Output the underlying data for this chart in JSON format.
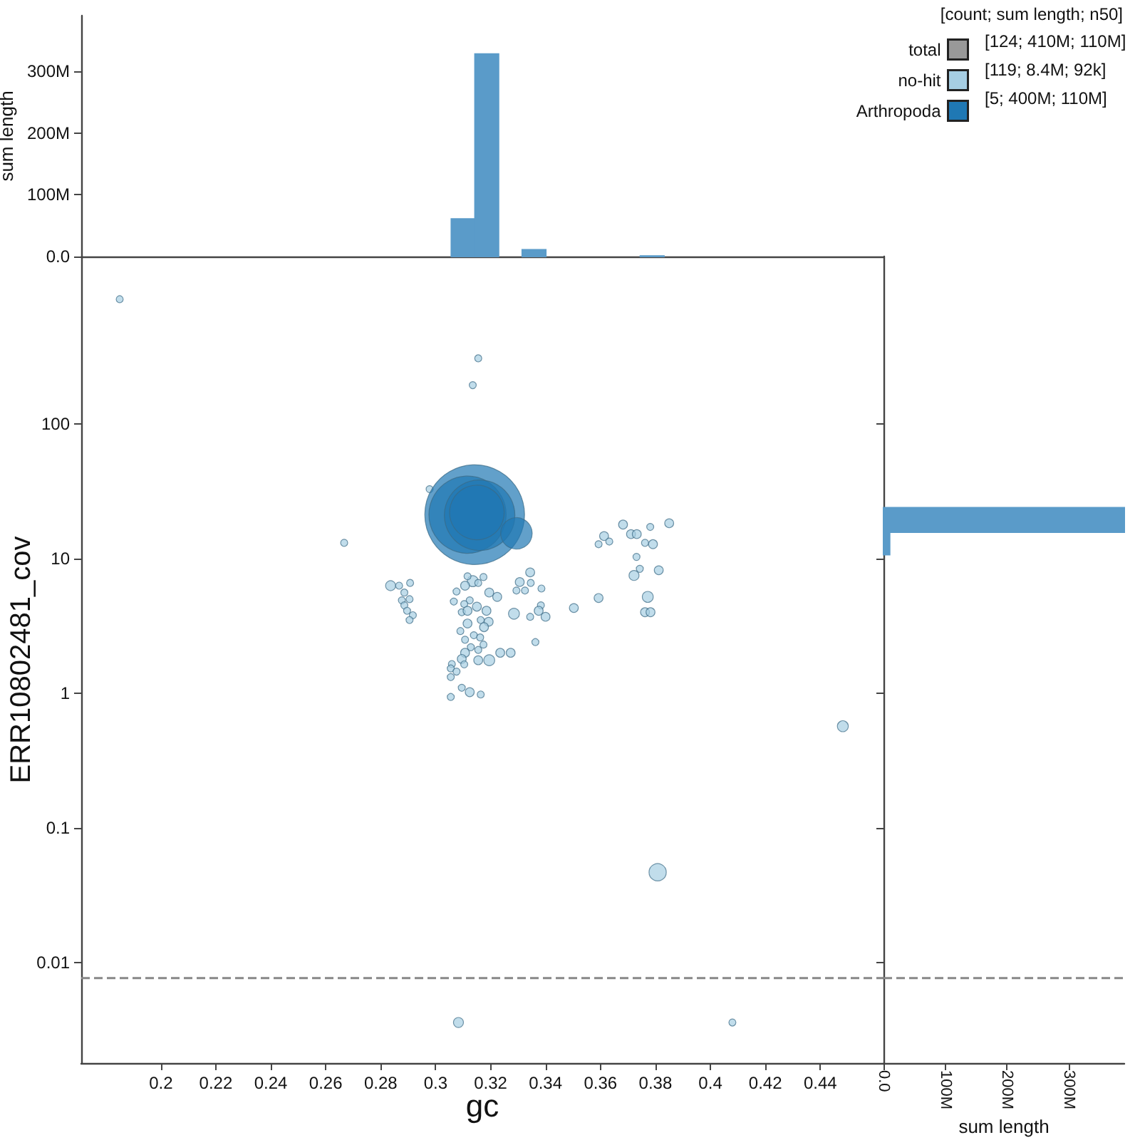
{
  "chart_data": [
    {
      "type": "histogram",
      "ylabel": "sum length",
      "bins": [
        0.3057,
        0.3143,
        0.3229,
        0.3315,
        0.3401,
        0.3487,
        0.3573,
        0.3659,
        0.3745,
        0.3831
      ],
      "values": [
        61000000,
        328000000,
        0,
        11000000,
        0,
        0,
        0,
        0,
        1000000
      ],
      "color": "#5a9bc9",
      "xlim": [
        0.171,
        0.463
      ],
      "ylim": [
        0,
        390000000
      ],
      "yticks": [
        {
          "value": 0,
          "label": "0.0"
        },
        {
          "value": 100000000,
          "label": "100M"
        },
        {
          "value": 200000000,
          "label": "200M"
        },
        {
          "value": 300000000,
          "label": "300M"
        }
      ],
      "tick_labels": "y"
    },
    {
      "type": "bubble",
      "xlabel": "gc",
      "ylabel": "ERR10802481_cov",
      "log": "y",
      "legend": "top right",
      "legend_title": "[count; sum length; n50]",
      "annotations": [
        "[124; 410M; 110M]",
        "[119; 8.4M; 92k]",
        "[5; 400M; 110M]"
      ],
      "xlim": [
        0.171,
        0.463
      ],
      "ylim": [
        0.0018,
        1750
      ],
      "xticks": [
        0.2,
        0.22,
        0.24,
        0.26,
        0.28,
        0.3,
        0.32,
        0.34,
        0.36,
        0.38,
        0.4,
        0.42,
        0.44
      ],
      "yticks": [
        0.01,
        0.1,
        1,
        10,
        100
      ],
      "ref_lines": [
        {
          "axis": "y",
          "value": 0.0077,
          "color": "#888888",
          "line_style": "dashed"
        }
      ],
      "series": [
        {
          "name": "total",
          "color": "#999999"
        },
        {
          "name": "no-hit",
          "color": "#a6cee3",
          "x": [
            0.185,
            0.3155,
            0.3135,
            0.2978,
            0.2667,
            0.3682,
            0.3613,
            0.3593,
            0.3632,
            0.3711,
            0.3732,
            0.3781,
            0.385,
            0.3762,
            0.3791,
            0.3731,
            0.3743,
            0.3722,
            0.3812,
            0.3593,
            0.3772,
            0.3762,
            0.3782,
            0.3503,
            0.3344,
            0.3306,
            0.3346,
            0.3294,
            0.3325,
            0.3385,
            0.3224,
            0.3195,
            0.3135,
            0.3116,
            0.3107,
            0.3155,
            0.3174,
            0.3076,
            0.3124,
            0.3066,
            0.3104,
            0.315,
            0.3095,
            0.3116,
            0.3185,
            0.3285,
            0.3383,
            0.3375,
            0.34,
            0.3344,
            0.3164,
            0.3116,
            0.3193,
            0.3176,
            0.309,
            0.3139,
            0.3162,
            0.3107,
            0.3174,
            0.3363,
            0.3128,
            0.3155,
            0.3107,
            0.3235,
            0.3273,
            0.3095,
            0.3195,
            0.3155,
            0.3059,
            0.3104,
            0.3055,
            0.3076,
            0.3055,
            0.3095,
            0.3124,
            0.3164,
            0.3055,
            0.2836,
            0.2867,
            0.2907,
            0.2886,
            0.2877,
            0.2905,
            0.2886,
            0.2896,
            0.2917,
            0.2905,
            0.4482,
            0.3808,
            0.3083,
            0.408
          ],
          "values": [
            843,
            307,
            194,
            32.8,
            13.1,
            17.9,
            14.7,
            12.8,
            13.4,
            15.2,
            15.2,
            17.2,
            18.3,
            13.1,
            12.8,
            10.3,
            8.4,
            7.5,
            8.2,
            5.1,
            5.2,
            4.0,
            4.0,
            4.3,
            7.9,
            6.7,
            6.6,
            5.8,
            5.8,
            6.0,
            5.2,
            5.6,
            6.8,
            7.4,
            6.3,
            6.6,
            7.3,
            5.7,
            4.9,
            4.8,
            4.6,
            4.4,
            4.0,
            4.1,
            4.1,
            3.9,
            4.5,
            4.1,
            3.7,
            3.7,
            3.5,
            3.3,
            3.4,
            3.1,
            2.9,
            2.7,
            2.6,
            2.5,
            2.3,
            2.4,
            2.2,
            2.1,
            2.0,
            2.0,
            2.0,
            1.8,
            1.76,
            1.76,
            1.65,
            1.64,
            1.53,
            1.45,
            1.32,
            1.1,
            1.02,
            0.98,
            0.94,
            6.3,
            6.3,
            6.6,
            5.6,
            4.9,
            5.0,
            4.5,
            4.1,
            3.8,
            3.5,
            0.57,
            0.047,
            0.0036,
            0.0036
          ],
          "sizes": [
            0.005,
            0.005,
            0.005,
            0.005,
            0.005,
            0.008,
            0.008,
            0.005,
            0.005,
            0.008,
            0.008,
            0.005,
            0.008,
            0.005,
            0.008,
            0.005,
            0.005,
            0.01,
            0.008,
            0.008,
            0.012,
            0.008,
            0.008,
            0.008,
            0.008,
            0.008,
            0.005,
            0.005,
            0.005,
            0.005,
            0.008,
            0.008,
            0.012,
            0.005,
            0.008,
            0.005,
            0.005,
            0.005,
            0.005,
            0.005,
            0.005,
            0.008,
            0.005,
            0.008,
            0.008,
            0.012,
            0.005,
            0.008,
            0.008,
            0.005,
            0.005,
            0.008,
            0.008,
            0.008,
            0.005,
            0.005,
            0.005,
            0.005,
            0.005,
            0.005,
            0.005,
            0.005,
            0.008,
            0.008,
            0.008,
            0.008,
            0.012,
            0.008,
            0.005,
            0.005,
            0.005,
            0.005,
            0.005,
            0.005,
            0.008,
            0.005,
            0.005,
            0.01,
            0.005,
            0.005,
            0.005,
            0.005,
            0.005,
            0.005,
            0.005,
            0.005,
            0.005,
            0.012,
            0.03,
            0.01,
            0.005
          ]
        },
        {
          "name": "Arthropoda",
          "color": "#1f78b4",
          "x": [
            0.3142,
            0.3116,
            0.316,
            0.3294,
            0.315
          ],
          "values": [
            21.2,
            21.2,
            21,
            15.4,
            22
          ],
          "sizes": [
            1,
            0.6,
            0.5,
            0.1,
            0.3
          ]
        }
      ]
    },
    {
      "type": "histogram",
      "orientation": "horizontal",
      "xlabel": "sum length",
      "log": "y",
      "bins": [
        10.7,
        15.7,
        23.9
      ],
      "values": [
        10000000,
        390000000
      ],
      "color": "#5a9bc9",
      "xlim": [
        0,
        390000000
      ],
      "xticks": [
        {
          "value": 0,
          "label": "0.0"
        },
        {
          "value": 100000000,
          "label": "100M"
        },
        {
          "value": 200000000,
          "label": "200M"
        },
        {
          "value": 300000000,
          "label": "300M"
        }
      ],
      "ylim": [
        0.0018,
        1750
      ],
      "yticks": [
        {
          "value": 0.01,
          "label": null
        },
        {
          "value": 0.1,
          "label": null
        },
        {
          "value": 1,
          "label": null
        },
        {
          "value": 10,
          "label": null
        },
        {
          "value": 100,
          "label": null
        }
      ],
      "ref_lines": [
        {
          "axis": "y",
          "value": 0.0077,
          "color": "#888888",
          "line_style": "dashed"
        }
      ],
      "tick_labels": "x"
    }
  ]
}
